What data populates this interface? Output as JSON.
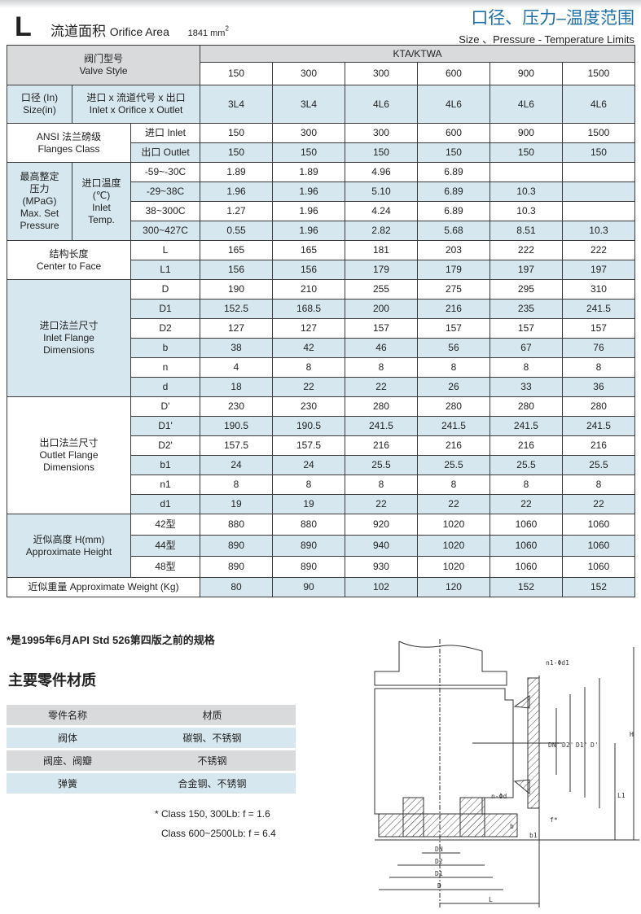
{
  "header": {
    "letter": "L",
    "orifice_cn": "流道面积",
    "orifice_en": "Orifice Area",
    "orifice_value": "1841 mm",
    "orifice_sup": "2",
    "title_cn": "口径、压力–温度范围",
    "title_en": "Size 、Pressure - Temperature Limits"
  },
  "colors": {
    "header_gray": "#d9dadc",
    "band_blue": "#d6e7ef",
    "title_blue": "#1d6fa8"
  },
  "table": {
    "valve_style": "阀门型号\nValve Style",
    "model": "KTA/KTWA",
    "classes": [
      "150",
      "300",
      "300",
      "600",
      "900",
      "1500"
    ],
    "size": {
      "label1": "口径 (In)\nSize(in)",
      "label2": "进口 x 流道代号 x 出口\nInlet x Orifice x Outlet",
      "values": [
        "3L4",
        "3L4",
        "4L6",
        "4L6",
        "4L6",
        "4L6"
      ]
    },
    "ansi": {
      "group": "ANSI 法兰磅级\nFlanges Class",
      "rows": [
        {
          "label": "进口  Inlet",
          "values": [
            "150",
            "300",
            "300",
            "600",
            "900",
            "1500"
          ]
        },
        {
          "label": "出口  Outlet",
          "values": [
            "150",
            "150",
            "150",
            "150",
            "150",
            "150"
          ]
        }
      ]
    },
    "pressure": {
      "group": "最高整定\n压力\n(MPaG)\nMax. Set\nPressure",
      "sub": "进口温度\n(℃)\nInlet\nTemp.",
      "rows": [
        {
          "label": "-59~-30C",
          "values": [
            "1.89",
            "1.89",
            "4.96",
            "6.89",
            "",
            ""
          ]
        },
        {
          "label": "-29~38C",
          "values": [
            "1.96",
            "1.96",
            "5.10",
            "6.89",
            "10.3",
            ""
          ]
        },
        {
          "label": "38~300C",
          "values": [
            "1.27",
            "1.96",
            "4.24",
            "6.89",
            "10.3",
            ""
          ]
        },
        {
          "label": "300~427C",
          "values": [
            "0.55",
            "1.96",
            "2.82",
            "5.68",
            "8.51",
            "10.3"
          ]
        }
      ]
    },
    "center_to_face": {
      "group": "结构长度\nCenter to Face",
      "rows": [
        {
          "label": "L",
          "values": [
            "165",
            "165",
            "181",
            "203",
            "222",
            "222"
          ]
        },
        {
          "label": "L1",
          "values": [
            "156",
            "156",
            "179",
            "179",
            "197",
            "197"
          ]
        }
      ]
    },
    "inlet_flange": {
      "group": "进口法兰尺寸\nInlet Flange\nDimensions",
      "rows": [
        {
          "label": "D",
          "values": [
            "190",
            "210",
            "255",
            "275",
            "295",
            "310"
          ]
        },
        {
          "label": "D1",
          "values": [
            "152.5",
            "168.5",
            "200",
            "216",
            "235",
            "241.5"
          ]
        },
        {
          "label": "D2",
          "values": [
            "127",
            "127",
            "157",
            "157",
            "157",
            "157"
          ]
        },
        {
          "label": "b",
          "values": [
            "38",
            "42",
            "46",
            "56",
            "67",
            "76"
          ]
        },
        {
          "label": "n",
          "values": [
            "4",
            "8",
            "8",
            "8",
            "8",
            "8"
          ]
        },
        {
          "label": "d",
          "values": [
            "18",
            "22",
            "22",
            "26",
            "33",
            "36"
          ]
        }
      ]
    },
    "outlet_flange": {
      "group": "出口法兰尺寸\nOutlet Flange\nDimensions",
      "rows": [
        {
          "label": "D'",
          "values": [
            "230",
            "230",
            "280",
            "280",
            "280",
            "280"
          ]
        },
        {
          "label": "D1'",
          "values": [
            "190.5",
            "190.5",
            "241.5",
            "241.5",
            "241.5",
            "241.5"
          ]
        },
        {
          "label": "D2'",
          "values": [
            "157.5",
            "157.5",
            "216",
            "216",
            "216",
            "216"
          ]
        },
        {
          "label": "b1",
          "values": [
            "24",
            "24",
            "25.5",
            "25.5",
            "25.5",
            "25.5"
          ]
        },
        {
          "label": "n1",
          "values": [
            "8",
            "8",
            "8",
            "8",
            "8",
            "8"
          ]
        },
        {
          "label": "d1",
          "values": [
            "19",
            "19",
            "22",
            "22",
            "22",
            "22"
          ]
        }
      ]
    },
    "height": {
      "group": "近似高度 H(mm)\nApproximate Height",
      "rows": [
        {
          "label": "42型",
          "values": [
            "880",
            "880",
            "920",
            "1020",
            "1060",
            "1060"
          ]
        },
        {
          "label": "44型",
          "values": [
            "890",
            "890",
            "940",
            "1020",
            "1060",
            "1060"
          ]
        },
        {
          "label": "48型",
          "values": [
            "890",
            "890",
            "930",
            "1020",
            "1060",
            "1060"
          ]
        }
      ]
    },
    "weight": {
      "label": "近似重量  Approximate Weight (Kg)",
      "values": [
        "80",
        "90",
        "102",
        "120",
        "152",
        "152"
      ]
    }
  },
  "footnote": "*是1995年6月API Std 526第四版之前的规格",
  "materials": {
    "title": "主要零件材质",
    "header": [
      "零件名称",
      "材质"
    ],
    "rows": [
      [
        "阀体",
        "碳钢、不锈钢"
      ],
      [
        "阀座、阀瓣",
        "不锈钢"
      ],
      [
        "弹簧",
        "合金钢、不锈钢"
      ]
    ]
  },
  "notes": [
    "* Class 150, 300Lb:     f = 1.6",
    "Class 600~2500Lb:   f = 6.4"
  ],
  "drawing_labels": {
    "n1d1": "n1-Φd1",
    "d2p": "D2'",
    "d1p": "D1'",
    "dp": "D'",
    "dn_out": "DN'",
    "h": "H",
    "l1": "L1",
    "f": "f*",
    "b": "b",
    "b1": "b1",
    "nd": "n-Φd",
    "dn": "DN",
    "d2": "D2",
    "d1": "D1",
    "d": "D",
    "l": "L"
  }
}
